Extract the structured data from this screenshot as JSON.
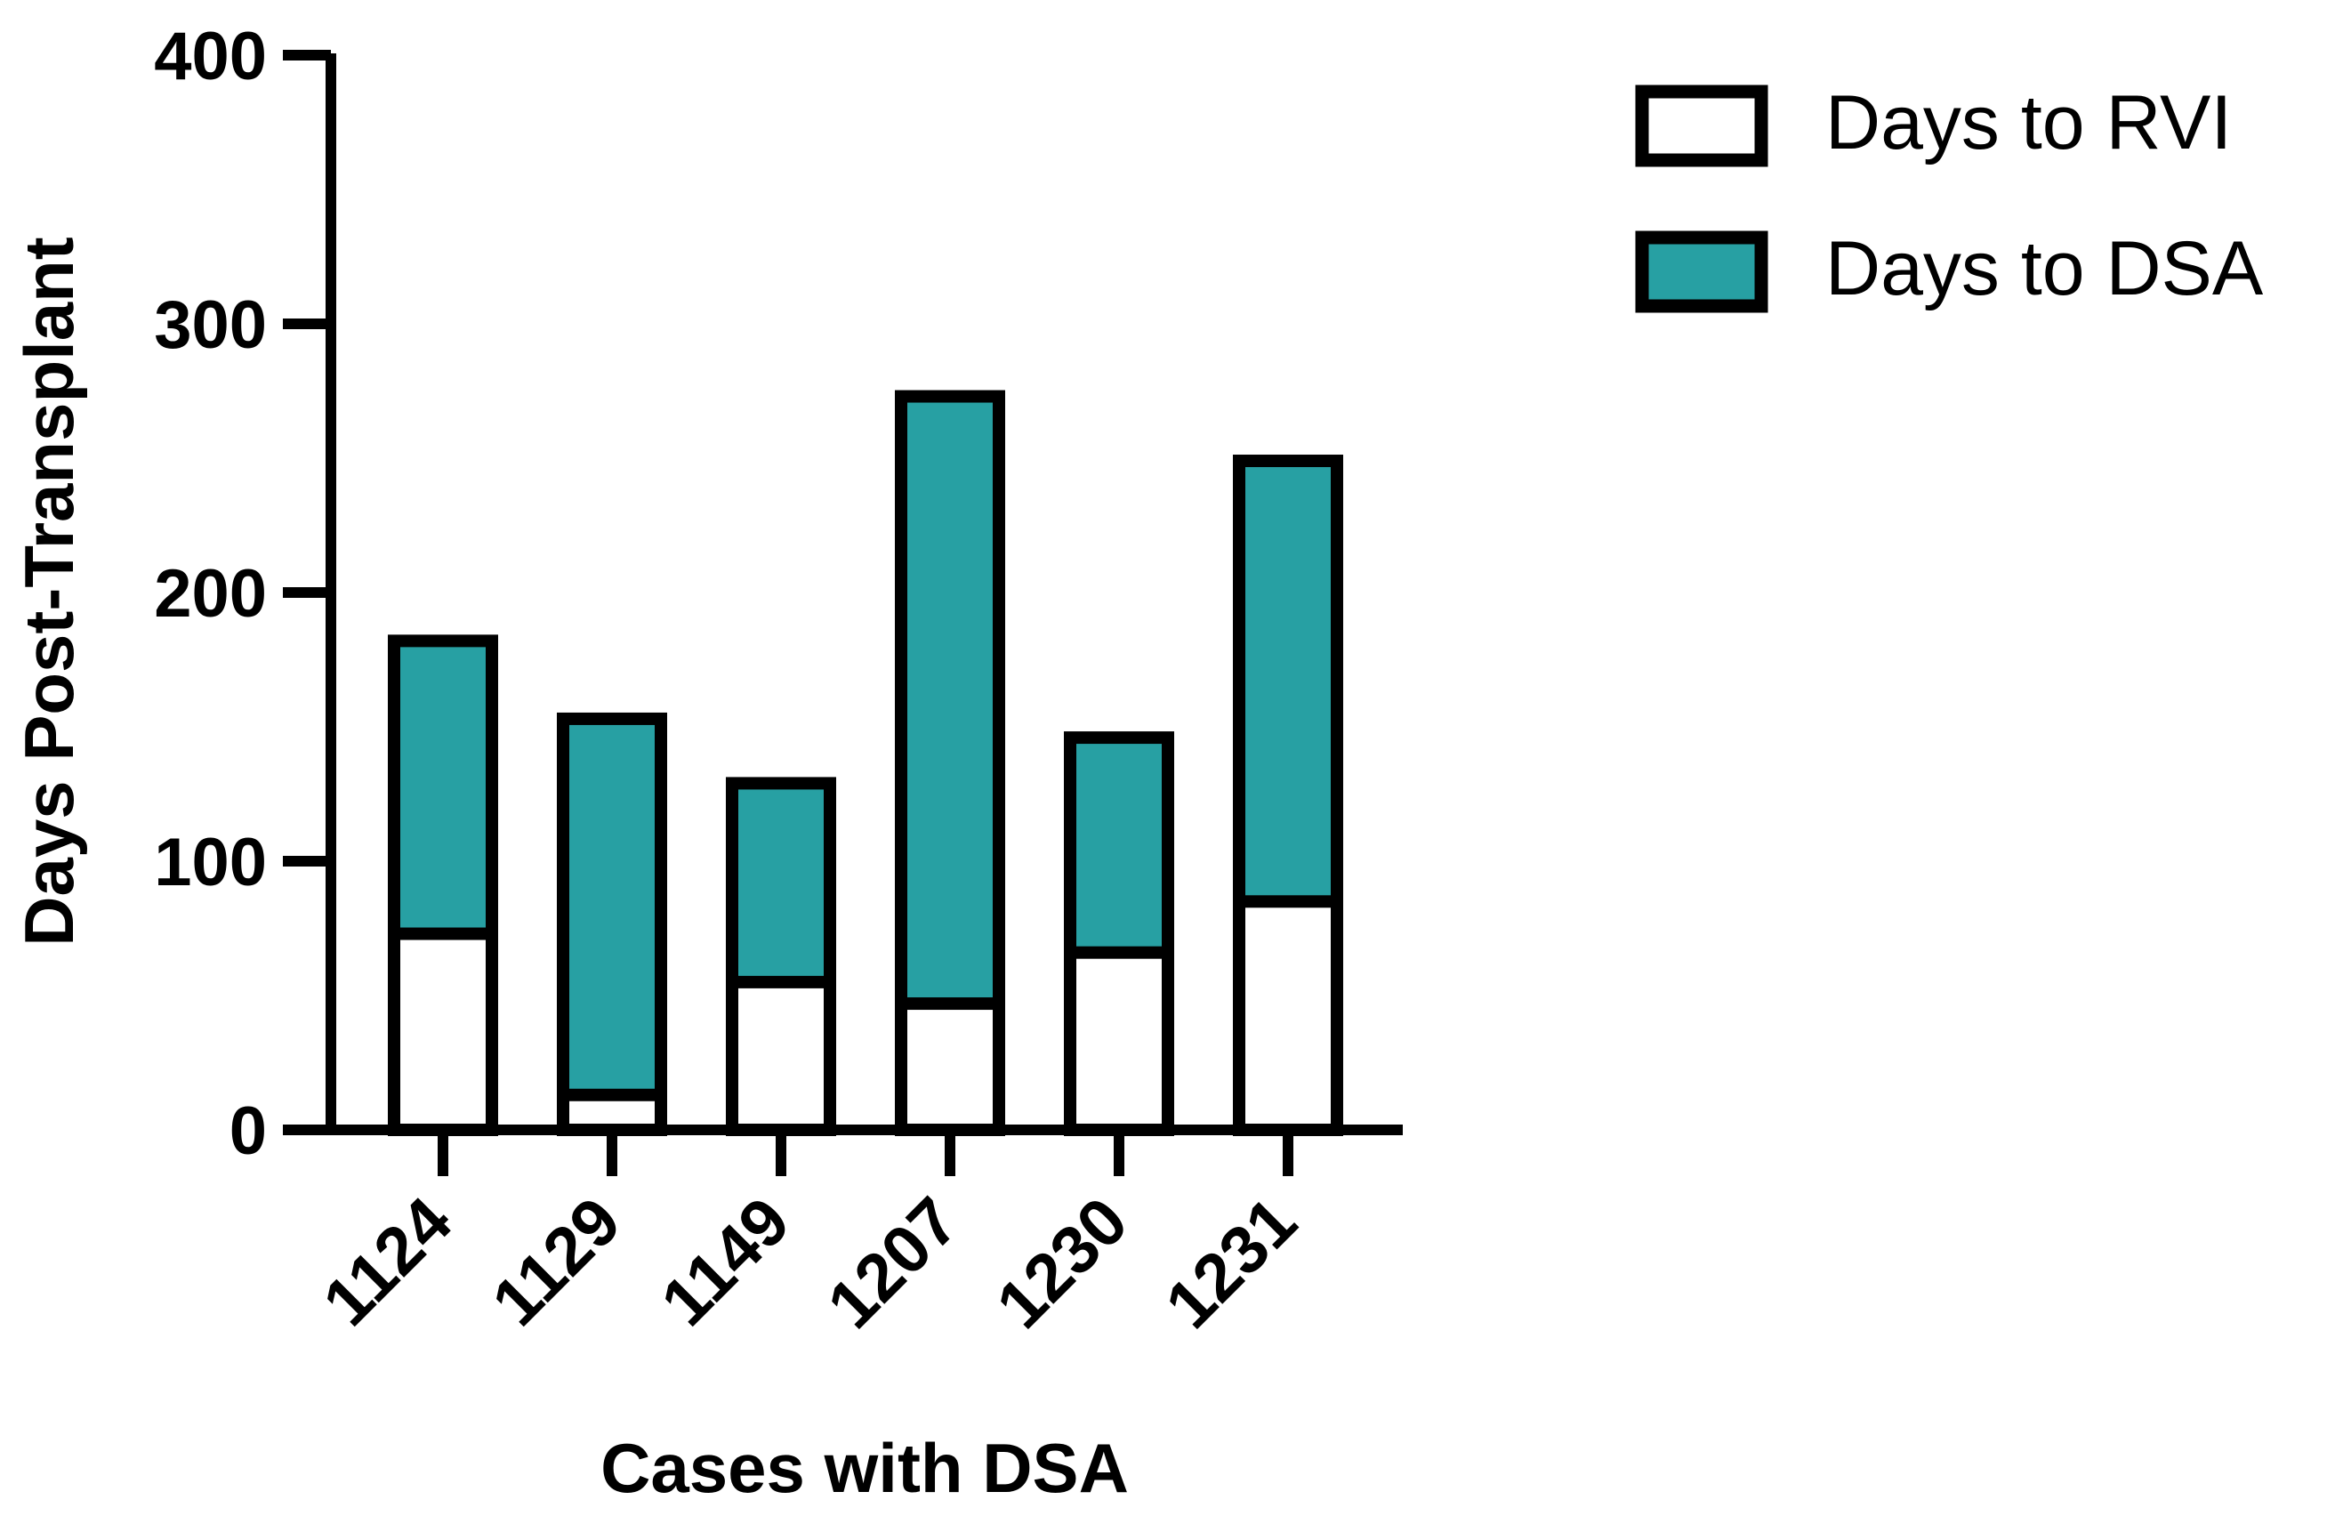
{
  "chart_data": {
    "type": "bar",
    "stacking": "overlay",
    "title": "",
    "xlabel": "Cases with DSA",
    "ylabel": "Days Post-Transplant",
    "ylim": [
      0,
      400
    ],
    "yticks": [
      0,
      100,
      200,
      300,
      400
    ],
    "categories": [
      "1124",
      "1129",
      "1149",
      "1207",
      "1230",
      "1231"
    ],
    "series": [
      {
        "name": "Days to RVI",
        "color": "#ffffff",
        "values": [
          73,
          13,
          55,
          47,
          66,
          85
        ]
      },
      {
        "name": "Days to DSA",
        "color": "#27a0a3",
        "values": [
          182,
          153,
          129,
          273,
          146,
          249
        ]
      }
    ],
    "legend_position": "top-right",
    "outline_color": "#000000"
  }
}
